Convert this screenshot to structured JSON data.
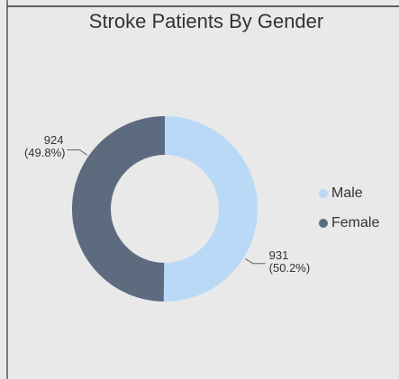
{
  "chart_data": {
    "type": "donut",
    "title": "Stroke Patients By Gender",
    "categories": [
      "Male",
      "Female"
    ],
    "values": [
      931,
      924
    ],
    "percent_labels": [
      "(50.2%)",
      "(49.8%)"
    ],
    "colors": [
      "#b9d9f7",
      "#5c6b7e"
    ],
    "legend": "right"
  }
}
